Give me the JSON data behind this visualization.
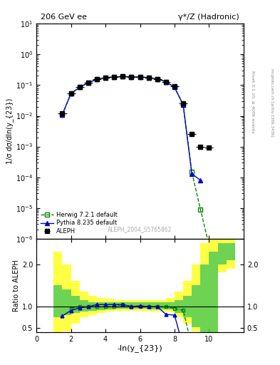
{
  "title_left": "206 GeV ee",
  "title_right": "γ*/Z (Hadronic)",
  "ylabel_main": "1/σ dσ/dln(y_{23})",
  "ylabel_ratio": "Ratio to ALEPH",
  "xlabel": "-ln(y_{23})",
  "watermark": "ALEPH_2004_S5765862",
  "right_label": "Rivet 3.1.10, ≥ 400k events",
  "right_label2": "mcplots.cern.ch [arXiv:1306.3436]",
  "aleph_x": [
    1.5,
    2.0,
    2.5,
    3.0,
    3.5,
    4.0,
    4.5,
    5.0,
    5.5,
    6.0,
    6.5,
    7.0,
    7.5,
    8.0,
    8.5,
    9.0,
    9.5,
    10.0
  ],
  "aleph_y": [
    0.012,
    0.055,
    0.085,
    0.12,
    0.155,
    0.175,
    0.185,
    0.19,
    0.185,
    0.185,
    0.175,
    0.16,
    0.13,
    0.09,
    0.025,
    0.0025,
    0.001,
    0.00095
  ],
  "herwig_x": [
    1.5,
    2.0,
    2.5,
    3.0,
    3.5,
    4.0,
    4.5,
    5.0,
    5.5,
    6.0,
    6.5,
    7.0,
    7.5,
    8.0,
    8.5,
    9.0,
    9.5,
    10.0,
    10.5,
    11.0
  ],
  "herwig_y": [
    0.011,
    0.053,
    0.085,
    0.12,
    0.155,
    0.175,
    0.185,
    0.19,
    0.185,
    0.185,
    0.175,
    0.16,
    0.13,
    0.085,
    0.023,
    0.00015,
    9e-06,
    6e-07,
    3e-08,
    null
  ],
  "pythia_x": [
    1.5,
    2.0,
    2.5,
    3.0,
    3.5,
    4.0,
    4.5,
    5.0,
    5.5,
    6.0,
    6.5,
    7.0,
    7.5,
    8.0,
    8.5,
    9.0,
    9.5
  ],
  "pythia_y": [
    0.011,
    0.053,
    0.085,
    0.12,
    0.155,
    0.175,
    0.185,
    0.19,
    0.185,
    0.185,
    0.175,
    0.16,
    0.13,
    0.085,
    0.023,
    0.00013,
    8e-05
  ],
  "ratio_herwig_x": [
    2.0,
    2.5,
    3.0,
    3.5,
    4.0,
    4.5,
    5.0,
    5.5,
    6.0,
    6.5,
    7.0,
    7.5,
    8.0,
    8.5,
    9.0,
    9.5,
    10.0,
    10.5
  ],
  "ratio_herwig_y": [
    0.96,
    1.0,
    1.0,
    1.0,
    1.0,
    1.0,
    1.05,
    1.0,
    1.0,
    1.0,
    1.0,
    1.0,
    0.95,
    0.92,
    0.06,
    0.009,
    0.00063,
    3e-05
  ],
  "ratio_pythia_x": [
    1.5,
    2.0,
    2.5,
    3.0,
    3.5,
    4.0,
    4.5,
    5.0,
    5.5,
    6.0,
    6.5,
    7.0,
    7.5,
    8.0,
    8.5,
    9.0,
    9.5
  ],
  "ratio_pythia_y": [
    0.78,
    0.91,
    0.97,
    1.0,
    1.05,
    1.05,
    1.05,
    1.05,
    1.0,
    1.02,
    1.0,
    1.0,
    0.82,
    0.8,
    0.052,
    0.032,
    0.032
  ],
  "band_edges": [
    1.0,
    1.5,
    2.0,
    2.5,
    3.0,
    3.5,
    4.0,
    4.5,
    5.0,
    5.5,
    6.0,
    6.5,
    7.0,
    7.5,
    8.0,
    8.5,
    9.0,
    9.5,
    10.0,
    10.5,
    11.0,
    11.5
  ],
  "green_lo": [
    0.75,
    0.8,
    0.85,
    0.88,
    0.9,
    0.92,
    0.93,
    0.95,
    0.95,
    0.95,
    0.95,
    0.93,
    0.93,
    0.93,
    0.85,
    0.75,
    0.52,
    0.4,
    0.3,
    2.0,
    2.1,
    2.1
  ],
  "green_hi": [
    1.5,
    1.4,
    1.25,
    1.15,
    1.1,
    1.1,
    1.1,
    1.1,
    1.1,
    1.1,
    1.1,
    1.1,
    1.1,
    1.1,
    1.15,
    1.25,
    1.5,
    2.0,
    2.3,
    2.5,
    2.5,
    2.5
  ],
  "yellow_lo": [
    0.4,
    0.42,
    0.6,
    0.75,
    0.8,
    0.85,
    0.88,
    0.9,
    0.9,
    0.9,
    0.9,
    0.88,
    0.88,
    0.88,
    0.75,
    0.6,
    0.42,
    0.2,
    0.15,
    1.8,
    1.9,
    1.9
  ],
  "yellow_hi": [
    2.3,
    2.0,
    1.6,
    1.35,
    1.25,
    1.2,
    1.18,
    1.15,
    1.15,
    1.15,
    1.15,
    1.15,
    1.15,
    1.2,
    1.35,
    1.6,
    2.0,
    2.5,
    2.6,
    2.7,
    2.7,
    2.7
  ],
  "color_aleph": "#000000",
  "color_herwig": "#008800",
  "color_pythia": "#0000cc",
  "color_green_band": "#55cc55",
  "color_yellow_band": "#ffff44",
  "xlim": [
    0,
    12
  ],
  "xticks": [
    0,
    2,
    4,
    6,
    8,
    10
  ],
  "ylim_main": [
    1e-06,
    10
  ],
  "ylim_ratio": [
    0.4,
    2.6
  ],
  "ratio_yticks": [
    0.5,
    1.0,
    2.0
  ]
}
